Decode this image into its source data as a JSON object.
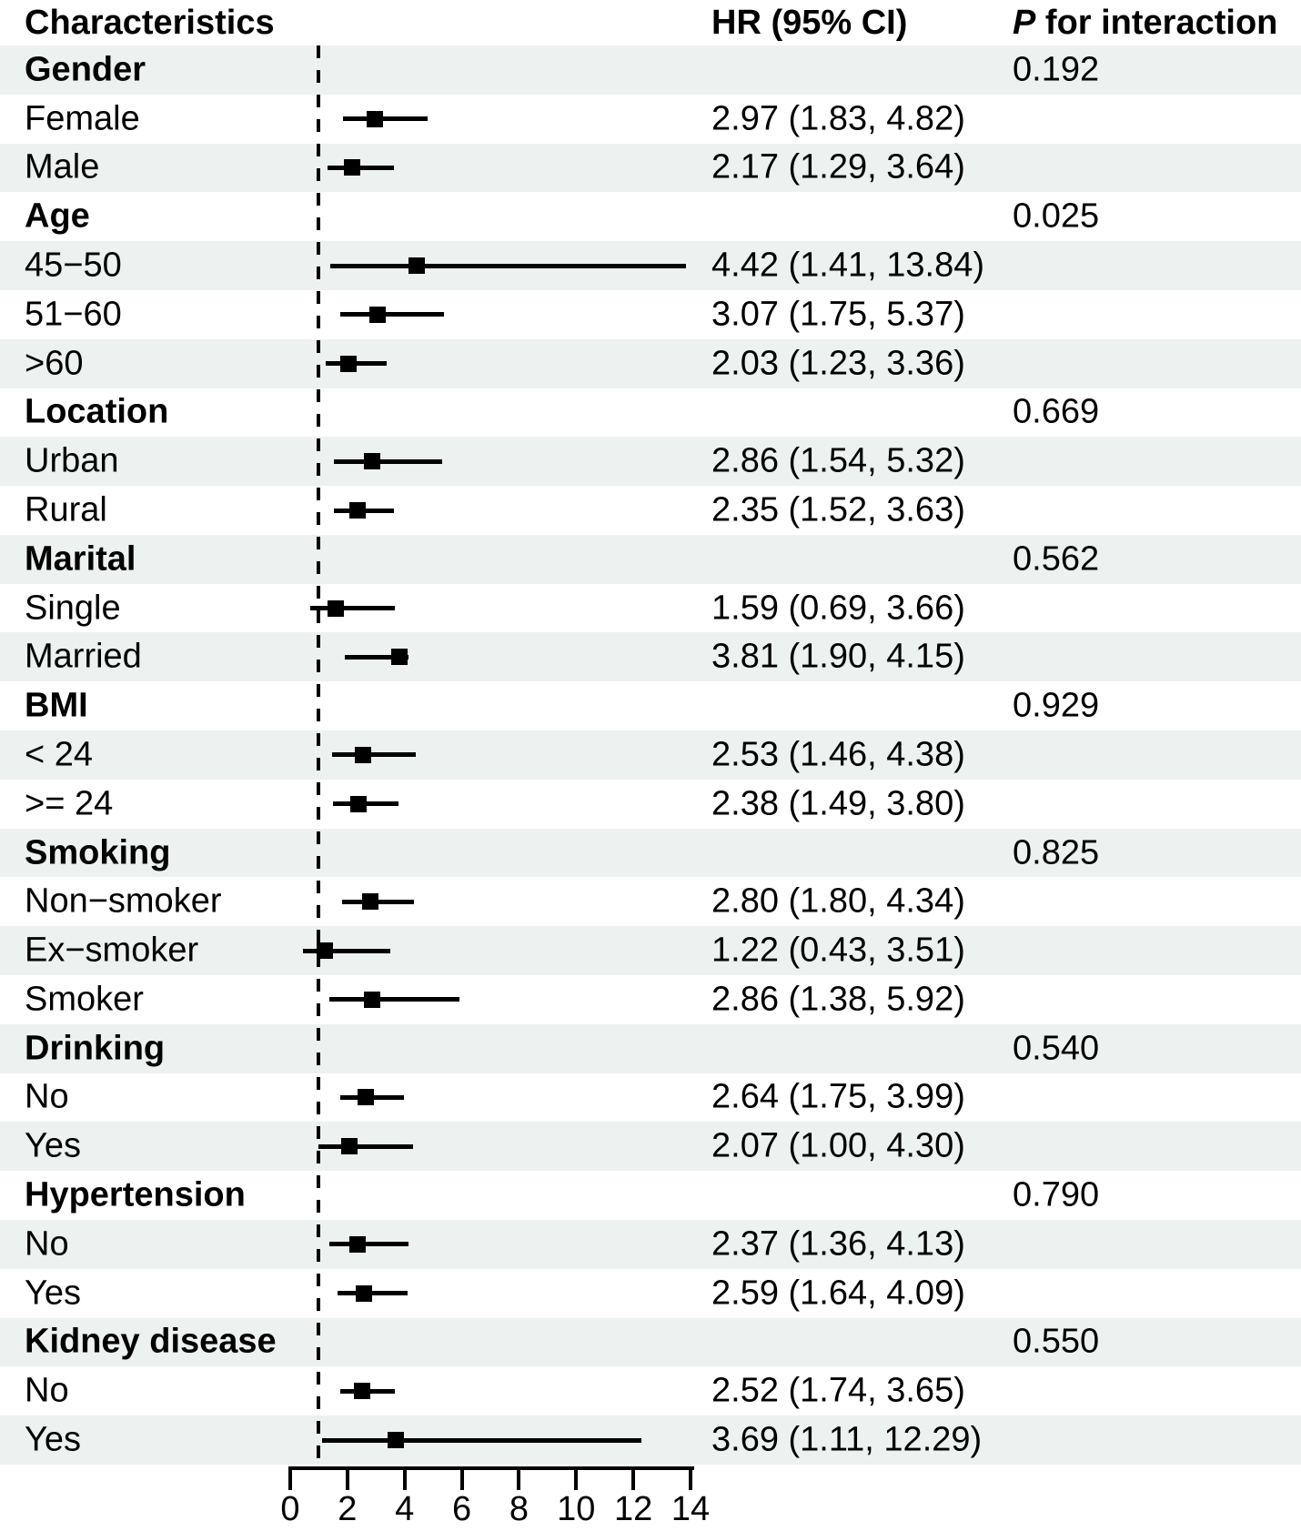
{
  "header": {
    "characteristics": "Characteristics",
    "hr_ci": "HR (95% CI)",
    "p_italic": "P",
    "p_rest": " for interaction"
  },
  "colors": {
    "stripe": "#edf1f0",
    "ink": "#000000",
    "background": "#ffffff"
  },
  "chart_data": {
    "type": "scatter",
    "variant": "forest-plot",
    "title": "",
    "xlabel": "",
    "columns": [
      "Characteristics",
      "HR (95% CI)",
      "P for interaction"
    ],
    "x_axis_ticks": [
      "0",
      "2",
      "4",
      "6",
      "8",
      "10",
      "12",
      "14"
    ],
    "xlim": [
      0,
      14
    ],
    "reference_line_x": 1,
    "grid": false,
    "groups": [
      {
        "name": "Gender",
        "p_interaction": "0.192",
        "subgroups": [
          {
            "label": "Female",
            "hr": 2.97,
            "ci_low": 1.83,
            "ci_high": 4.82,
            "hr_ci_text": "2.97 (1.83, 4.82)"
          },
          {
            "label": "Male",
            "hr": 2.17,
            "ci_low": 1.29,
            "ci_high": 3.64,
            "hr_ci_text": "2.17 (1.29, 3.64)"
          }
        ]
      },
      {
        "name": "Age",
        "p_interaction": "0.025",
        "subgroups": [
          {
            "label": "45−50",
            "hr": 4.42,
            "ci_low": 1.41,
            "ci_high": 13.84,
            "hr_ci_text": "4.42 (1.41, 13.84)"
          },
          {
            "label": "51−60",
            "hr": 3.07,
            "ci_low": 1.75,
            "ci_high": 5.37,
            "hr_ci_text": "3.07 (1.75, 5.37)"
          },
          {
            "label": ">60",
            "hr": 2.03,
            "ci_low": 1.23,
            "ci_high": 3.36,
            "hr_ci_text": "2.03 (1.23, 3.36)"
          }
        ]
      },
      {
        "name": "Location",
        "p_interaction": "0.669",
        "subgroups": [
          {
            "label": "Urban",
            "hr": 2.86,
            "ci_low": 1.54,
            "ci_high": 5.32,
            "hr_ci_text": "2.86 (1.54, 5.32)"
          },
          {
            "label": "Rural",
            "hr": 2.35,
            "ci_low": 1.52,
            "ci_high": 3.63,
            "hr_ci_text": "2.35 (1.52, 3.63)"
          }
        ]
      },
      {
        "name": "Marital",
        "p_interaction": "0.562",
        "subgroups": [
          {
            "label": "Single",
            "hr": 1.59,
            "ci_low": 0.69,
            "ci_high": 3.66,
            "hr_ci_text": "1.59 (0.69, 3.66)"
          },
          {
            "label": "Married",
            "hr": 3.81,
            "ci_low": 1.9,
            "ci_high": 4.15,
            "hr_ci_text": "3.81 (1.90, 4.15)"
          }
        ]
      },
      {
        "name": "BMI",
        "p_interaction": "0.929",
        "subgroups": [
          {
            "label": "< 24",
            "hr": 2.53,
            "ci_low": 1.46,
            "ci_high": 4.38,
            "hr_ci_text": "2.53 (1.46, 4.38)"
          },
          {
            "label": ">= 24",
            "hr": 2.38,
            "ci_low": 1.49,
            "ci_high": 3.8,
            "hr_ci_text": "2.38 (1.49, 3.80)"
          }
        ]
      },
      {
        "name": "Smoking",
        "p_interaction": "0.825",
        "subgroups": [
          {
            "label": "Non−smoker",
            "hr": 2.8,
            "ci_low": 1.8,
            "ci_high": 4.34,
            "hr_ci_text": "2.80 (1.80, 4.34)"
          },
          {
            "label": "Ex−smoker",
            "hr": 1.22,
            "ci_low": 0.43,
            "ci_high": 3.51,
            "hr_ci_text": "1.22 (0.43, 3.51)"
          },
          {
            "label": "Smoker",
            "hr": 2.86,
            "ci_low": 1.38,
            "ci_high": 5.92,
            "hr_ci_text": "2.86 (1.38, 5.92)"
          }
        ]
      },
      {
        "name": "Drinking",
        "p_interaction": "0.540",
        "subgroups": [
          {
            "label": "No",
            "hr": 2.64,
            "ci_low": 1.75,
            "ci_high": 3.99,
            "hr_ci_text": "2.64 (1.75, 3.99)"
          },
          {
            "label": "Yes",
            "hr": 2.07,
            "ci_low": 1.0,
            "ci_high": 4.3,
            "hr_ci_text": "2.07 (1.00, 4.30)"
          }
        ]
      },
      {
        "name": "Hypertension",
        "p_interaction": "0.790",
        "subgroups": [
          {
            "label": "No",
            "hr": 2.37,
            "ci_low": 1.36,
            "ci_high": 4.13,
            "hr_ci_text": "2.37 (1.36, 4.13)"
          },
          {
            "label": "Yes",
            "hr": 2.59,
            "ci_low": 1.64,
            "ci_high": 4.09,
            "hr_ci_text": "2.59 (1.64, 4.09)"
          }
        ]
      },
      {
        "name": "Kidney disease",
        "p_interaction": "0.550",
        "subgroups": [
          {
            "label": "No",
            "hr": 2.52,
            "ci_low": 1.74,
            "ci_high": 3.65,
            "hr_ci_text": "2.52 (1.74, 3.65)"
          },
          {
            "label": "Yes",
            "hr": 3.69,
            "ci_low": 1.11,
            "ci_high": 12.29,
            "hr_ci_text": "3.69 (1.11, 12.29)"
          }
        ]
      }
    ]
  }
}
